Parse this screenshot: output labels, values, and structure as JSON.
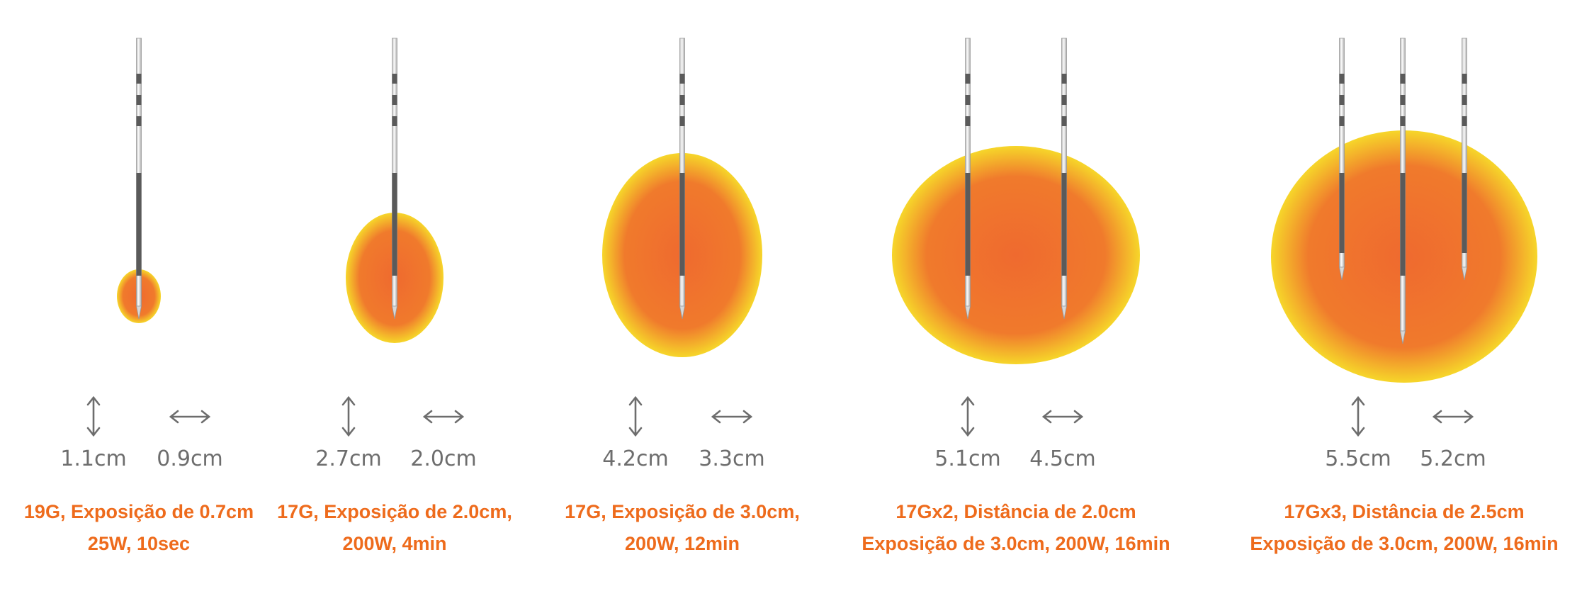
{
  "colors": {
    "zone_center": "#ef6a2f",
    "zone_mid": "#f07a2c",
    "zone_edge": "#f6d62a",
    "needle_light": "#eeeeee",
    "needle_dark": "#5a5a5a",
    "arrow": "#6d6d6d",
    "caption": "#ee6b1c",
    "dimension_text": "#6d6d6d"
  },
  "icons": {
    "vertical_arrow": "vertical-double-arrow-icon",
    "horizontal_arrow": "horizontal-double-arrow-icon",
    "needle": "needle-icon"
  },
  "ablations": [
    {
      "needles": 1,
      "vertical": "1.1cm",
      "horizontal": "0.9cm",
      "caption_lines": [
        "19G, Exposição de 0.7cm",
        "25W, 10sec"
      ]
    },
    {
      "needles": 1,
      "vertical": "2.7cm",
      "horizontal": "2.0cm",
      "caption_lines": [
        "17G, Exposição de 2.0cm,",
        "200W, 4min"
      ]
    },
    {
      "needles": 1,
      "vertical": "4.2cm",
      "horizontal": "3.3cm",
      "caption_lines": [
        "17G, Exposição de 3.0cm,",
        "200W, 12min"
      ]
    },
    {
      "needles": 2,
      "vertical": "5.1cm",
      "horizontal": "4.5cm",
      "caption_lines": [
        "17Gx2, Distância de 2.0cm",
        "Exposição de 3.0cm, 200W, 16min"
      ]
    },
    {
      "needles": 3,
      "vertical": "5.5cm",
      "horizontal": "5.2cm",
      "caption_lines": [
        "17Gx3, Distância de 2.5cm",
        "Exposição de 3.0cm, 200W, 16min"
      ]
    }
  ]
}
